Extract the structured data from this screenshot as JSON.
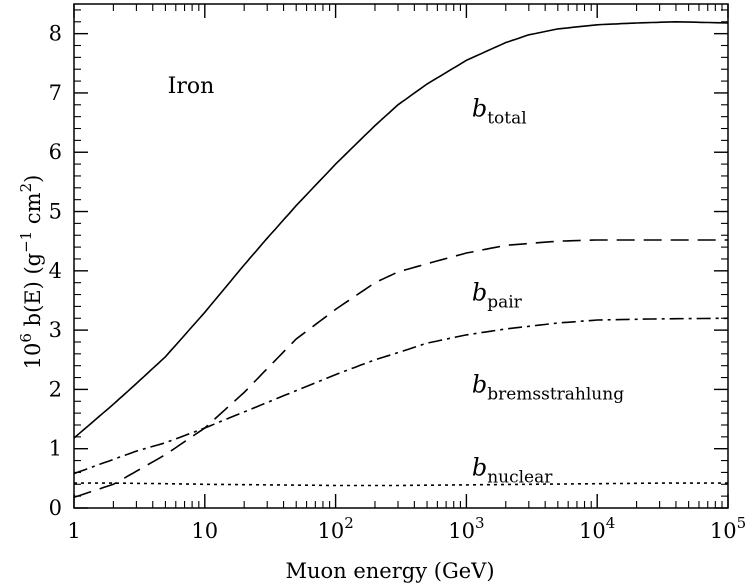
{
  "chart_data": {
    "type": "line",
    "title": "",
    "xlabel": "Muon energy (GeV)",
    "ylabel": {
      "prefix": "10",
      "prefix_exp": "6",
      "quantity": " b(E)   (g",
      "unit_exp1": "−1",
      "unit_mid": " cm",
      "unit_exp2": "2",
      "suffix": ")"
    },
    "xscale": "log",
    "xlim": [
      1,
      100000
    ],
    "ylim": [
      0,
      8.5
    ],
    "grid": false,
    "x_ticks": [
      {
        "value": 1,
        "base": "1",
        "exp": ""
      },
      {
        "value": 10,
        "base": "10",
        "exp": ""
      },
      {
        "value": 100,
        "base": "10",
        "exp": "2"
      },
      {
        "value": 1000,
        "base": "10",
        "exp": "3"
      },
      {
        "value": 10000,
        "base": "10",
        "exp": "4"
      },
      {
        "value": 100000,
        "base": "10",
        "exp": "5"
      }
    ],
    "y_ticks": [
      0,
      1,
      2,
      3,
      4,
      5,
      6,
      7,
      8
    ],
    "annotations": [
      {
        "id": "material",
        "text": "Iron",
        "sub": "",
        "x": 5.2,
        "y": 7.0
      },
      {
        "id": "total-label",
        "text": "b",
        "sub": "total",
        "x": 1100,
        "y": 6.6
      },
      {
        "id": "pair-label",
        "text": "b",
        "sub": "pair",
        "x": 1100,
        "y": 3.5
      },
      {
        "id": "brems-label",
        "text": "b",
        "sub": "bremsstrahlung",
        "x": 1100,
        "y": 1.95
      },
      {
        "id": "nuclear-label",
        "text": "b",
        "sub": "nuclear",
        "x": 1100,
        "y": 0.55
      }
    ],
    "series": [
      {
        "id": "total",
        "style": "solid",
        "x": [
          1,
          2,
          3,
          5,
          10,
          20,
          30,
          50,
          100,
          200,
          300,
          500,
          1000,
          2000,
          3000,
          5000,
          10000,
          20000,
          40000,
          100000
        ],
        "y": [
          1.18,
          1.75,
          2.1,
          2.55,
          3.3,
          4.1,
          4.55,
          5.1,
          5.8,
          6.45,
          6.8,
          7.15,
          7.55,
          7.85,
          7.98,
          8.08,
          8.15,
          8.18,
          8.2,
          8.18
        ]
      },
      {
        "id": "pair",
        "style": "dashed",
        "x": [
          1,
          2,
          3,
          5,
          10,
          20,
          30,
          50,
          100,
          200,
          300,
          500,
          1000,
          2000,
          5000,
          10000,
          100000
        ],
        "y": [
          0.18,
          0.4,
          0.62,
          0.9,
          1.35,
          1.95,
          2.35,
          2.85,
          3.35,
          3.8,
          3.98,
          4.12,
          4.3,
          4.43,
          4.5,
          4.52,
          4.52
        ]
      },
      {
        "id": "bremsstrahlung",
        "style": "dashdot",
        "x": [
          1,
          2,
          3,
          5,
          10,
          20,
          30,
          50,
          100,
          200,
          300,
          500,
          1000,
          2000,
          5000,
          10000,
          30000,
          100000
        ],
        "y": [
          0.58,
          0.82,
          0.96,
          1.1,
          1.35,
          1.62,
          1.78,
          1.98,
          2.25,
          2.5,
          2.62,
          2.78,
          2.92,
          3.02,
          3.12,
          3.17,
          3.19,
          3.2
        ]
      },
      {
        "id": "nuclear",
        "style": "dotted",
        "x": [
          1,
          2,
          5,
          10,
          30,
          100,
          300,
          1000,
          3000,
          10000,
          30000,
          100000
        ],
        "y": [
          0.42,
          0.42,
          0.41,
          0.4,
          0.39,
          0.38,
          0.38,
          0.39,
          0.4,
          0.41,
          0.42,
          0.42
        ]
      }
    ]
  }
}
